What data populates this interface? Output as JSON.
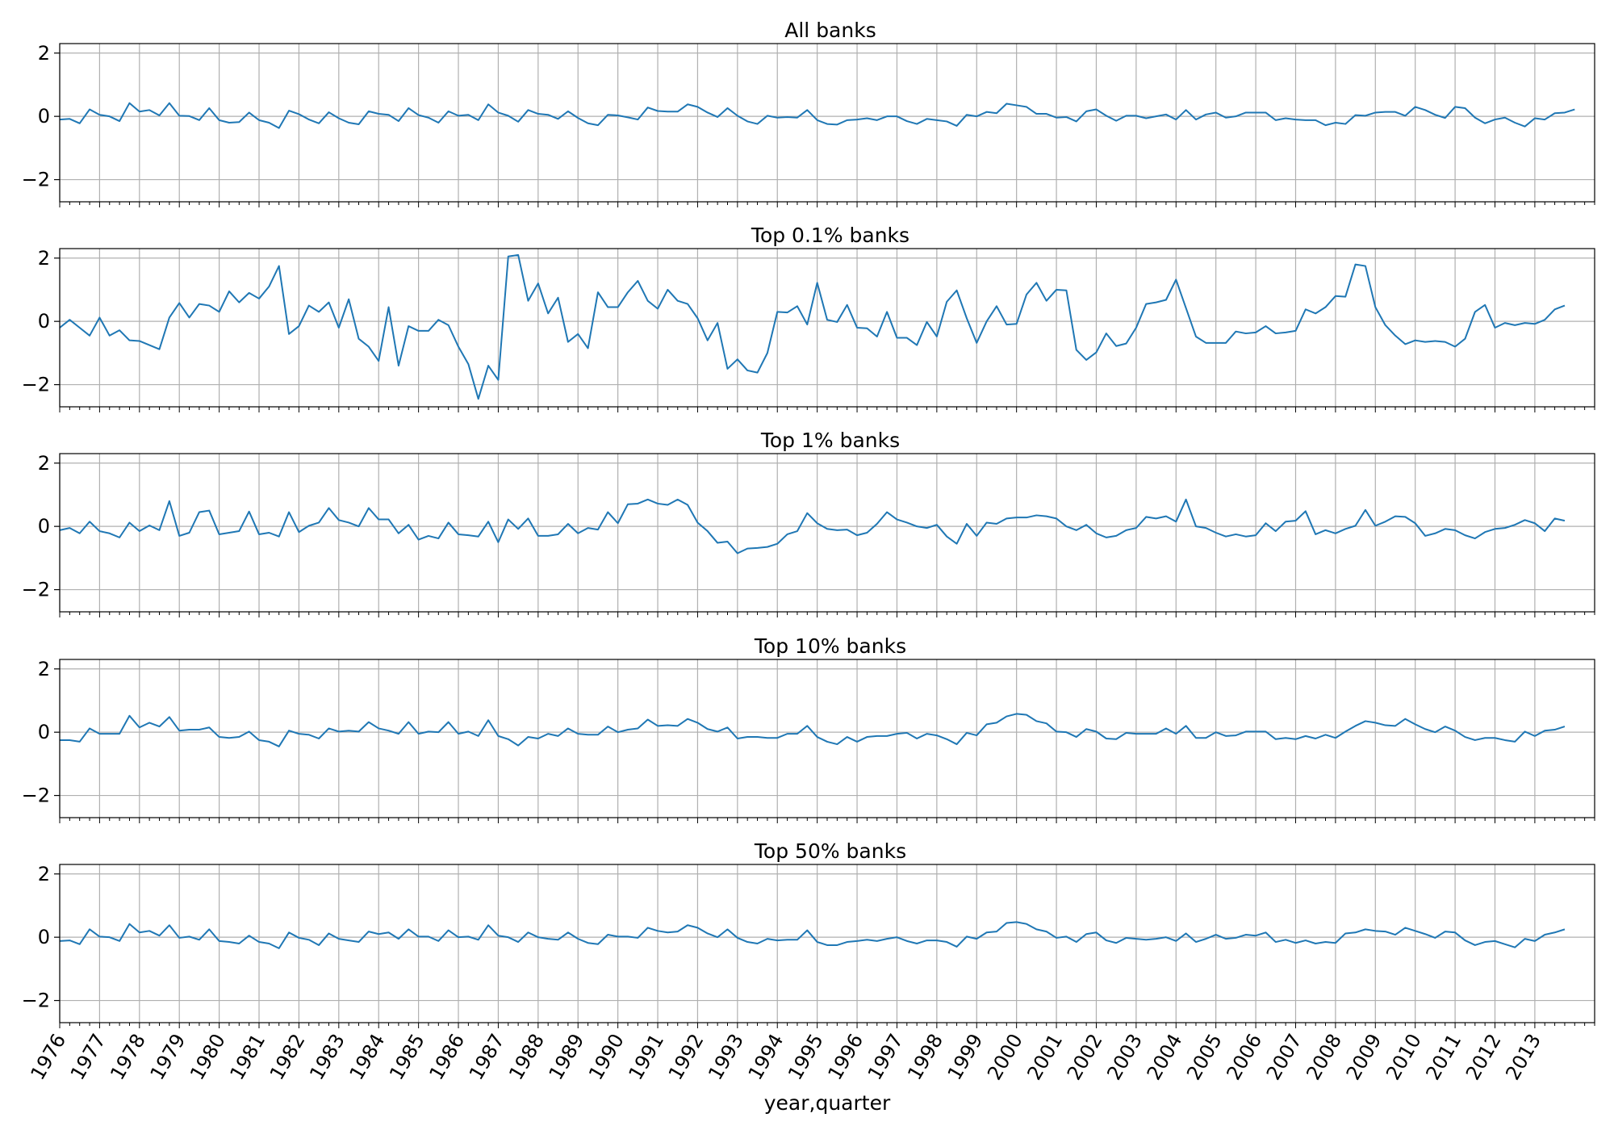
{
  "chart_data": {
    "type": "line",
    "layout": "5 stacked panels sharing one x axis",
    "xlabel": "year,quarter",
    "x_range": [
      "1976Q1",
      "2014Q3"
    ],
    "x_tick_labels": [
      "1976",
      "1977",
      "1978",
      "1979",
      "1980",
      "1981",
      "1982",
      "1983",
      "1984",
      "1985",
      "1986",
      "1987",
      "1988",
      "1989",
      "1990",
      "1991",
      "1992",
      "1993",
      "1994",
      "1995",
      "1996",
      "1997",
      "1998",
      "1999",
      "2000",
      "2001",
      "2002",
      "2003",
      "2004",
      "2005",
      "2006",
      "2007",
      "2008",
      "2009",
      "2010",
      "2011",
      "2012",
      "2013"
    ],
    "ylim": [
      -2.7,
      2.3
    ],
    "y_ticks": [
      -2,
      0,
      2
    ],
    "grid": true,
    "line_color": "#1f77b4",
    "panels": [
      {
        "title": "All banks",
        "values": [
          -0.1,
          -0.08,
          -0.22,
          0.22,
          0.05,
          0,
          -0.15,
          0.42,
          0.15,
          0.2,
          0.03,
          0.42,
          0.02,
          0.01,
          -0.12,
          0.26,
          -0.12,
          -0.2,
          -0.18,
          0.12,
          -0.12,
          -0.2,
          -0.37,
          0.18,
          0.07,
          -0.1,
          -0.22,
          0.13,
          -0.06,
          -0.2,
          -0.25,
          0.16,
          0.08,
          0.05,
          -0.15,
          0.26,
          0.04,
          -0.04,
          -0.2,
          0.16,
          0.02,
          0.05,
          -0.12,
          0.38,
          0.12,
          0.02,
          -0.17,
          0.2,
          0.08,
          0.05,
          -0.08,
          0.16,
          -0.05,
          -0.22,
          -0.28,
          0.05,
          0.03,
          -0.03,
          -0.1,
          0.28,
          0.17,
          0.15,
          0.15,
          0.38,
          0.3,
          0.12,
          -0.02,
          0.26,
          0.02,
          -0.16,
          -0.24,
          0.02,
          -0.04,
          -0.02,
          -0.04,
          0.2,
          -0.12,
          -0.24,
          -0.26,
          -0.12,
          -0.1,
          -0.06,
          -0.12,
          0,
          0,
          -0.15,
          -0.24,
          -0.08,
          -0.12,
          -0.16,
          -0.3,
          0.05,
          0,
          0.14,
          0.1,
          0.4,
          0.35,
          0.3,
          0.08,
          0.08,
          -0.04,
          -0.02,
          -0.16,
          0.16,
          0.22,
          0.02,
          -0.14,
          0.02,
          0.02,
          -0.06,
          0,
          0.06,
          -0.1,
          0.2,
          -0.1,
          0.06,
          0.12,
          -0.04,
          0,
          0.12,
          0.12,
          0.12,
          -0.12,
          -0.06,
          -0.1,
          -0.12,
          -0.12,
          -0.28,
          -0.2,
          -0.24,
          0.04,
          0.02,
          0.12,
          0.14,
          0.14,
          0.02,
          0.3,
          0.2,
          0.05,
          -0.05,
          0.3,
          0.26,
          -0.04,
          -0.22,
          -0.1,
          -0.04,
          -0.2,
          -0.32,
          -0.06,
          -0.1,
          0.1,
          0.12,
          0.22
        ]
      },
      {
        "title": "Top 0.1% banks",
        "values": [
          -0.2,
          0.05,
          -0.2,
          -0.45,
          0.12,
          -0.45,
          -0.28,
          -0.6,
          -0.62,
          -0.75,
          -0.88,
          0.12,
          0.58,
          0.12,
          0.55,
          0.5,
          0.3,
          0.95,
          0.6,
          0.9,
          0.72,
          1.1,
          1.75,
          -0.4,
          -0.15,
          0.5,
          0.3,
          0.6,
          -0.2,
          0.7,
          -0.55,
          -0.8,
          -1.25,
          0.45,
          -1.4,
          -0.15,
          -0.3,
          -0.3,
          0.05,
          -0.12,
          -0.8,
          -1.35,
          -2.45,
          -1.4,
          -1.85,
          2.05,
          2.1,
          0.65,
          1.2,
          0.25,
          0.75,
          -0.65,
          -0.4,
          -0.85,
          0.92,
          0.45,
          0.45,
          0.92,
          1.28,
          0.65,
          0.4,
          1.0,
          0.65,
          0.55,
          0.1,
          -0.6,
          -0.05,
          -1.5,
          -1.2,
          -1.55,
          -1.62,
          -1.0,
          0.3,
          0.28,
          0.48,
          -0.1,
          1.22,
          0.05,
          -0.02,
          0.52,
          -0.2,
          -0.22,
          -0.48,
          0.3,
          -0.52,
          -0.52,
          -0.75,
          -0.02,
          -0.48,
          0.62,
          0.98,
          0.1,
          -0.68,
          0.0,
          0.48,
          -0.1,
          -0.08,
          0.85,
          1.22,
          0.65,
          1.0,
          0.98,
          -0.9,
          -1.22,
          -0.98,
          -0.38,
          -0.78,
          -0.7,
          -0.2,
          0.55,
          0.6,
          0.68,
          1.32,
          0.42,
          -0.48,
          -0.68,
          -0.68,
          -0.68,
          -0.32,
          -0.38,
          -0.35,
          -0.15,
          -0.38,
          -0.35,
          -0.3,
          0.38,
          0.25,
          0.45,
          0.8,
          0.78,
          1.8,
          1.75,
          0.45,
          -0.12,
          -0.45,
          -0.72,
          -0.6,
          -0.65,
          -0.62,
          -0.65,
          -0.8,
          -0.55,
          0.3,
          0.52,
          -0.2,
          -0.05,
          -0.12,
          -0.05,
          -0.08,
          0.05,
          0.38,
          0.5
        ]
      },
      {
        "title": "Top 1% banks",
        "values": [
          -0.12,
          -0.05,
          -0.22,
          0.15,
          -0.15,
          -0.22,
          -0.35,
          0.12,
          -0.15,
          0.03,
          -0.12,
          0.8,
          -0.3,
          -0.2,
          0.45,
          0.5,
          -0.25,
          -0.2,
          -0.15,
          0.47,
          -0.25,
          -0.2,
          -0.32,
          0.45,
          -0.18,
          0.02,
          0.12,
          0.58,
          0.2,
          0.12,
          0,
          0.58,
          0.22,
          0.22,
          -0.22,
          0.05,
          -0.42,
          -0.3,
          -0.38,
          0.12,
          -0.25,
          -0.28,
          -0.32,
          0.15,
          -0.5,
          0.22,
          -0.08,
          0.25,
          -0.3,
          -0.3,
          -0.25,
          0.08,
          -0.22,
          -0.05,
          -0.1,
          0.45,
          0.1,
          0.7,
          0.72,
          0.85,
          0.72,
          0.68,
          0.85,
          0.68,
          0.12,
          -0.15,
          -0.52,
          -0.48,
          -0.85,
          -0.7,
          -0.68,
          -0.65,
          -0.55,
          -0.25,
          -0.15,
          0.42,
          0.1,
          -0.08,
          -0.12,
          -0.1,
          -0.28,
          -0.2,
          0.08,
          0.45,
          0.22,
          0.12,
          0,
          -0.05,
          0.05,
          -0.32,
          -0.55,
          0.08,
          -0.3,
          0.12,
          0.08,
          0.25,
          0.28,
          0.28,
          0.35,
          0.32,
          0.25,
          0,
          -0.12,
          0.05,
          -0.22,
          -0.35,
          -0.3,
          -0.12,
          -0.05,
          0.3,
          0.25,
          0.32,
          0.15,
          0.85,
          0,
          -0.05,
          -0.2,
          -0.32,
          -0.25,
          -0.32,
          -0.28,
          0.1,
          -0.15,
          0.15,
          0.18,
          0.48,
          -0.25,
          -0.12,
          -0.22,
          -0.08,
          0.02,
          0.52,
          0.02,
          0.15,
          0.32,
          0.3,
          0.1,
          -0.3,
          -0.22,
          -0.08,
          -0.12,
          -0.28,
          -0.38,
          -0.18,
          -0.08,
          -0.05,
          0.05,
          0.2,
          0.1,
          -0.15,
          0.25,
          0.18
        ]
      },
      {
        "title": "Top 10% banks",
        "values": [
          -0.25,
          -0.25,
          -0.3,
          0.12,
          -0.05,
          -0.05,
          -0.05,
          0.52,
          0.15,
          0.3,
          0.18,
          0.48,
          0.05,
          0.08,
          0.08,
          0.15,
          -0.15,
          -0.18,
          -0.15,
          0.02,
          -0.25,
          -0.3,
          -0.45,
          0.05,
          -0.05,
          -0.08,
          -0.2,
          0.12,
          0.02,
          0.05,
          0.02,
          0.32,
          0.12,
          0.05,
          -0.05,
          0.32,
          -0.05,
          0.02,
          0,
          0.32,
          -0.05,
          0.02,
          -0.12,
          0.38,
          -0.12,
          -0.22,
          -0.42,
          -0.15,
          -0.2,
          -0.05,
          -0.12,
          0.12,
          -0.05,
          -0.08,
          -0.08,
          0.18,
          0,
          0.08,
          0.12,
          0.4,
          0.2,
          0.22,
          0.2,
          0.42,
          0.3,
          0.1,
          0.02,
          0.15,
          -0.2,
          -0.15,
          -0.15,
          -0.18,
          -0.18,
          -0.05,
          -0.05,
          0.2,
          -0.15,
          -0.3,
          -0.38,
          -0.15,
          -0.3,
          -0.15,
          -0.12,
          -0.12,
          -0.05,
          -0.02,
          -0.2,
          -0.05,
          -0.1,
          -0.22,
          -0.38,
          -0.02,
          -0.1,
          0.25,
          0.3,
          0.5,
          0.58,
          0.55,
          0.35,
          0.28,
          0.02,
          0,
          -0.15,
          0.1,
          0.02,
          -0.2,
          -0.22,
          -0.02,
          -0.05,
          -0.05,
          -0.05,
          0.12,
          -0.05,
          0.2,
          -0.18,
          -0.18,
          0,
          -0.12,
          -0.1,
          0.02,
          0.02,
          0.02,
          -0.22,
          -0.18,
          -0.22,
          -0.12,
          -0.2,
          -0.08,
          -0.18,
          0.02,
          0.2,
          0.35,
          0.3,
          0.22,
          0.2,
          0.42,
          0.25,
          0.1,
          0,
          0.18,
          0.05,
          -0.15,
          -0.25,
          -0.18,
          -0.18,
          -0.25,
          -0.3,
          0.02,
          -0.12,
          0.05,
          0.08,
          0.18
        ]
      },
      {
        "title": "Top 50% banks",
        "values": [
          -0.12,
          -0.1,
          -0.22,
          0.25,
          0.02,
          0,
          -0.12,
          0.42,
          0.15,
          0.2,
          0.05,
          0.38,
          -0.02,
          0.02,
          -0.08,
          0.25,
          -0.12,
          -0.15,
          -0.2,
          0.05,
          -0.15,
          -0.2,
          -0.35,
          0.15,
          -0.02,
          -0.08,
          -0.25,
          0.12,
          -0.05,
          -0.1,
          -0.15,
          0.18,
          0.1,
          0.15,
          -0.05,
          0.25,
          0.02,
          0.02,
          -0.12,
          0.22,
          0,
          0.02,
          -0.08,
          0.38,
          0.05,
          0,
          -0.15,
          0.15,
          0,
          -0.05,
          -0.08,
          0.15,
          -0.05,
          -0.18,
          -0.22,
          0.08,
          0.02,
          0.02,
          -0.02,
          0.3,
          0.2,
          0.15,
          0.18,
          0.38,
          0.3,
          0.12,
          0,
          0.25,
          -0.02,
          -0.15,
          -0.2,
          -0.05,
          -0.1,
          -0.08,
          -0.08,
          0.22,
          -0.15,
          -0.25,
          -0.25,
          -0.15,
          -0.12,
          -0.08,
          -0.12,
          -0.05,
          0,
          -0.12,
          -0.2,
          -0.1,
          -0.1,
          -0.15,
          -0.3,
          0.02,
          -0.05,
          0.15,
          0.18,
          0.45,
          0.48,
          0.42,
          0.25,
          0.18,
          -0.02,
          0.02,
          -0.15,
          0.1,
          0.15,
          -0.1,
          -0.18,
          -0.02,
          -0.05,
          -0.08,
          -0.05,
          0,
          -0.12,
          0.12,
          -0.15,
          -0.05,
          0.08,
          -0.05,
          -0.02,
          0.08,
          0.05,
          0.15,
          -0.15,
          -0.08,
          -0.18,
          -0.1,
          -0.2,
          -0.15,
          -0.18,
          0.12,
          0.15,
          0.25,
          0.2,
          0.18,
          0.08,
          0.3,
          0.2,
          0.1,
          -0.02,
          0.18,
          0.15,
          -0.1,
          -0.25,
          -0.15,
          -0.12,
          -0.22,
          -0.32,
          -0.05,
          -0.12,
          0.08,
          0.15,
          0.25
        ]
      }
    ]
  }
}
